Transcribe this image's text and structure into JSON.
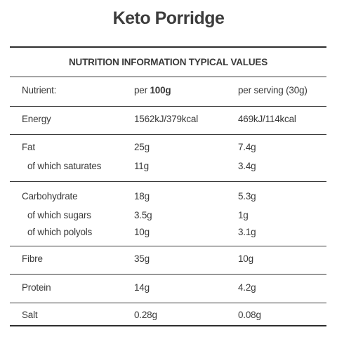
{
  "title": "Keto Porridge",
  "table_heading": "NUTRITION INFORMATION TYPICAL VALUES",
  "header": {
    "nutrient": "Nutrient:",
    "per_prefix": "per ",
    "per_amount": "100g",
    "per_serving": "per serving (30g)"
  },
  "groups": [
    {
      "rows": [
        {
          "name": "Energy",
          "per100": "1562kJ/379kcal",
          "serving": "469kJ/114kcal"
        }
      ]
    },
    {
      "rows": [
        {
          "name": "Fat",
          "per100": "25g",
          "serving": "7.4g"
        },
        {
          "name": "of which saturates",
          "per100": "11g",
          "serving": "3.4g"
        }
      ]
    },
    {
      "rows": [
        {
          "name": "Carbohydrate",
          "per100": "18g",
          "serving": "5.3g"
        },
        {
          "name": "of which sugars",
          "per100": "3.5g",
          "serving": "1g"
        },
        {
          "name": "of which polyols",
          "per100": "10g",
          "serving": "3.1g"
        }
      ]
    },
    {
      "rows": [
        {
          "name": "Fibre",
          "per100": "35g",
          "serving": "10g"
        }
      ]
    },
    {
      "rows": [
        {
          "name": "Protein",
          "per100": "14g",
          "serving": "4.2g"
        }
      ]
    },
    {
      "rows": [
        {
          "name": "Salt",
          "per100": "0.28g",
          "serving": "0.08g"
        }
      ]
    }
  ]
}
